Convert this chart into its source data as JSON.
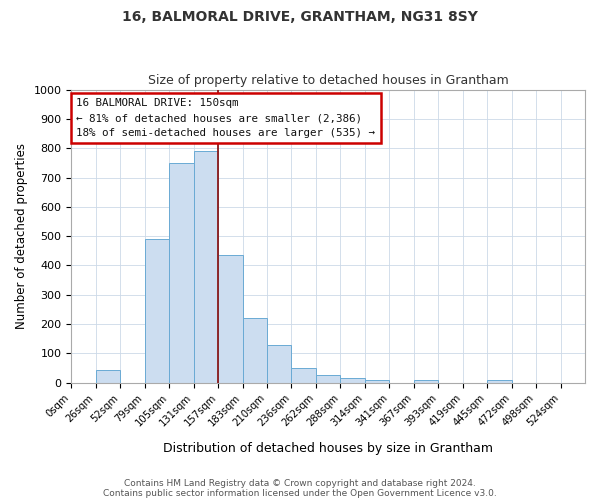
{
  "title": "16, BALMORAL DRIVE, GRANTHAM, NG31 8SY",
  "subtitle": "Size of property relative to detached houses in Grantham",
  "xlabel": "Distribution of detached houses by size in Grantham",
  "ylabel": "Number of detached properties",
  "bin_labels": [
    "0sqm",
    "26sqm",
    "52sqm",
    "79sqm",
    "105sqm",
    "131sqm",
    "157sqm",
    "183sqm",
    "210sqm",
    "236sqm",
    "262sqm",
    "288sqm",
    "314sqm",
    "341sqm",
    "367sqm",
    "393sqm",
    "419sqm",
    "445sqm",
    "472sqm",
    "498sqm",
    "524sqm"
  ],
  "bar_heights": [
    0,
    44,
    0,
    490,
    750,
    790,
    435,
    220,
    130,
    50,
    28,
    15,
    10,
    0,
    8,
    0,
    0,
    8,
    0,
    0
  ],
  "bar_color": "#ccddf0",
  "bar_edge_color": "#6aaad4",
  "vline_x": 6,
  "vline_color": "#8b1a1a",
  "ylim": [
    0,
    1000
  ],
  "yticks": [
    0,
    100,
    200,
    300,
    400,
    500,
    600,
    700,
    800,
    900,
    1000
  ],
  "annotation_title": "16 BALMORAL DRIVE: 150sqm",
  "annotation_line1": "← 81% of detached houses are smaller (2,386)",
  "annotation_line2": "18% of semi-detached houses are larger (535) →",
  "annotation_box_color": "#ffffff",
  "annotation_border_color": "#cc0000",
  "footnote1": "Contains HM Land Registry data © Crown copyright and database right 2024.",
  "footnote2": "Contains public sector information licensed under the Open Government Licence v3.0.",
  "bin_positions": [
    0,
    1,
    2,
    3,
    4,
    5,
    6,
    7,
    8,
    9,
    10,
    11,
    12,
    13,
    14,
    15,
    16,
    17,
    18,
    19,
    20
  ]
}
